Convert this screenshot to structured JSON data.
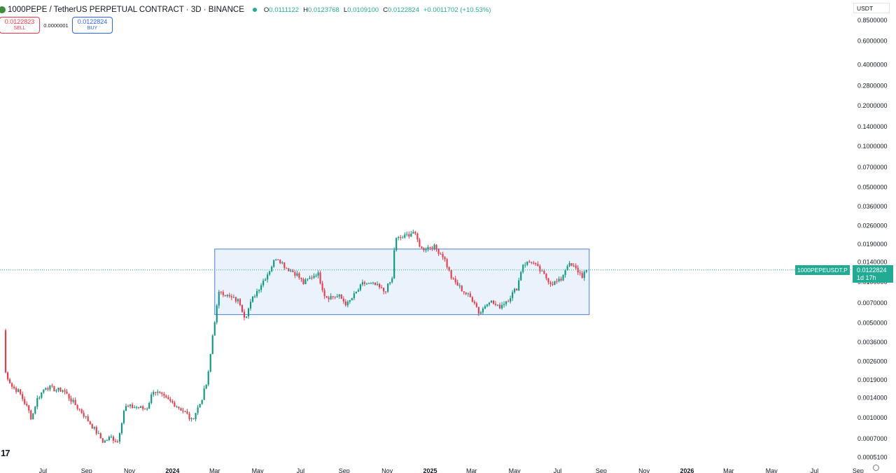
{
  "header": {
    "title": "1000PEPE / TetherUS PERPETUAL CONTRACT · 3D · BINANCE",
    "ohlc": [
      {
        "label": "O",
        "value": "0.0111122"
      },
      {
        "label": "H",
        "value": "0.0123768"
      },
      {
        "label": "L",
        "value": "0.0109100"
      },
      {
        "label": "C",
        "value": "0.0122824"
      }
    ],
    "change": "+0.0011702 (+10.53%)"
  },
  "trade": {
    "sell_price": "0.0122823",
    "sell_label": "SELL",
    "spread": "0.0000001",
    "buy_price": "0.0122824",
    "buy_label": "BUY"
  },
  "currency": "USDT",
  "last_price": {
    "symbol": "1000PEPEUSDT.P",
    "price": "0.0122824",
    "countdown": "1d 17h"
  },
  "colors": {
    "up": "#089981",
    "down": "#f23645",
    "accent": "#22ab94",
    "box_fill": "#e3eefb",
    "box_border": "#4a7fcf"
  },
  "chart_data": {
    "type": "candlestick",
    "y_scale": "log",
    "ylim": [
      0.00049,
      0.0085
    ],
    "y_ticks": [
      "0.8500000",
      "0.6000000",
      "0.4000000",
      "0.2800000",
      "0.2000000",
      "0.1400000",
      "0.1000000",
      "0.0700000",
      "0.0500000",
      "0.0360000",
      "0.0260000",
      "0.0190000",
      "0.0140000",
      "0.0100000",
      "0.0070000",
      "0.0050000",
      "0.0036000",
      "0.0026000",
      "0.0019000",
      "0.0014000",
      "0.0010000",
      "0.0007000",
      "0.0005100"
    ],
    "y_tick_values": [
      0.85,
      0.6,
      0.4,
      0.28,
      0.2,
      0.14,
      0.1,
      0.07,
      0.05,
      0.036,
      0.026,
      0.019,
      0.014,
      0.01,
      0.007,
      0.005,
      0.0036,
      0.0026,
      0.0019,
      0.0014,
      0.001,
      0.0007,
      0.00051
    ],
    "x_ticks": [
      {
        "label": "Jul",
        "date": "2023-07-01",
        "bold": false
      },
      {
        "label": "Sep",
        "date": "2023-09-01",
        "bold": false
      },
      {
        "label": "Nov",
        "date": "2023-11-01",
        "bold": false
      },
      {
        "label": "2024",
        "date": "2024-01-01",
        "bold": true
      },
      {
        "label": "Mar",
        "date": "2024-03-01",
        "bold": false
      },
      {
        "label": "May",
        "date": "2024-05-01",
        "bold": false
      },
      {
        "label": "Jul",
        "date": "2024-07-01",
        "bold": false
      },
      {
        "label": "Sep",
        "date": "2024-09-01",
        "bold": false
      },
      {
        "label": "Nov",
        "date": "2024-11-01",
        "bold": false
      },
      {
        "label": "2025",
        "date": "2025-01-01",
        "bold": true
      },
      {
        "label": "Mar",
        "date": "2025-03-01",
        "bold": false
      },
      {
        "label": "May",
        "date": "2025-05-01",
        "bold": false
      },
      {
        "label": "Jul",
        "date": "2025-07-01",
        "bold": false
      },
      {
        "label": "Sep",
        "date": "2025-09-01",
        "bold": false
      },
      {
        "label": "Nov",
        "date": "2025-11-01",
        "bold": false
      },
      {
        "label": "2026",
        "date": "2026-01-01",
        "bold": true
      },
      {
        "label": "Mar",
        "date": "2026-03-01",
        "bold": false
      },
      {
        "label": "May",
        "date": "2026-05-01",
        "bold": false
      },
      {
        "label": "Jul",
        "date": "2026-07-01",
        "bold": false
      },
      {
        "label": "Sep",
        "date": "2026-09-01",
        "bold": false
      }
    ],
    "x_range": [
      "2023-05-01",
      "2026-09-15"
    ],
    "series_anchors": [
      {
        "date": "2023-05-06",
        "close": 0.0044
      },
      {
        "date": "2023-05-08",
        "close": 0.0022
      },
      {
        "date": "2023-05-18",
        "close": 0.0017
      },
      {
        "date": "2023-05-28",
        "close": 0.00155
      },
      {
        "date": "2023-06-10",
        "close": 0.00115
      },
      {
        "date": "2023-06-15",
        "close": 0.00098
      },
      {
        "date": "2023-06-22",
        "close": 0.00135
      },
      {
        "date": "2023-07-05",
        "close": 0.0017
      },
      {
        "date": "2023-07-20",
        "close": 0.0016
      },
      {
        "date": "2023-07-30",
        "close": 0.0016
      },
      {
        "date": "2023-08-10",
        "close": 0.00135
      },
      {
        "date": "2023-08-25",
        "close": 0.0011
      },
      {
        "date": "2023-09-10",
        "close": 0.00085
      },
      {
        "date": "2023-09-25",
        "close": 0.00066
      },
      {
        "date": "2023-10-05",
        "close": 0.00072
      },
      {
        "date": "2023-10-15",
        "close": 0.00067
      },
      {
        "date": "2023-10-25",
        "close": 0.0012
      },
      {
        "date": "2023-11-10",
        "close": 0.0012
      },
      {
        "date": "2023-11-25",
        "close": 0.00115
      },
      {
        "date": "2023-12-05",
        "close": 0.0016
      },
      {
        "date": "2023-12-20",
        "close": 0.0014
      },
      {
        "date": "2024-01-05",
        "close": 0.00125
      },
      {
        "date": "2024-01-20",
        "close": 0.00108
      },
      {
        "date": "2024-01-28",
        "close": 0.00095
      },
      {
        "date": "2024-02-10",
        "close": 0.0013
      },
      {
        "date": "2024-02-20",
        "close": 0.0019
      },
      {
        "date": "2024-02-28",
        "close": 0.0045
      },
      {
        "date": "2024-03-08",
        "close": 0.0088
      },
      {
        "date": "2024-03-20",
        "close": 0.0078
      },
      {
        "date": "2024-04-05",
        "close": 0.0072
      },
      {
        "date": "2024-04-13",
        "close": 0.0055
      },
      {
        "date": "2024-04-25",
        "close": 0.0078
      },
      {
        "date": "2024-05-15",
        "close": 0.0115
      },
      {
        "date": "2024-05-28",
        "close": 0.0155
      },
      {
        "date": "2024-06-10",
        "close": 0.0128
      },
      {
        "date": "2024-06-25",
        "close": 0.0115
      },
      {
        "date": "2024-07-05",
        "close": 0.0098
      },
      {
        "date": "2024-07-25",
        "close": 0.0118
      },
      {
        "date": "2024-08-05",
        "close": 0.0078
      },
      {
        "date": "2024-08-25",
        "close": 0.0078
      },
      {
        "date": "2024-09-05",
        "close": 0.0068
      },
      {
        "date": "2024-09-28",
        "close": 0.0098
      },
      {
        "date": "2024-10-15",
        "close": 0.0095
      },
      {
        "date": "2024-10-28",
        "close": 0.0085
      },
      {
        "date": "2024-11-08",
        "close": 0.0105
      },
      {
        "date": "2024-11-12",
        "close": 0.0205
      },
      {
        "date": "2024-11-25",
        "close": 0.0215
      },
      {
        "date": "2024-12-08",
        "close": 0.0235
      },
      {
        "date": "2024-12-20",
        "close": 0.0175
      },
      {
        "date": "2025-01-05",
        "close": 0.0185
      },
      {
        "date": "2025-01-20",
        "close": 0.0155
      },
      {
        "date": "2025-02-01",
        "close": 0.0105
      },
      {
        "date": "2025-02-15",
        "close": 0.0088
      },
      {
        "date": "2025-03-05",
        "close": 0.0072
      },
      {
        "date": "2025-03-12",
        "close": 0.0058
      },
      {
        "date": "2025-03-25",
        "close": 0.0074
      },
      {
        "date": "2025-04-08",
        "close": 0.0065
      },
      {
        "date": "2025-04-22",
        "close": 0.0075
      },
      {
        "date": "2025-05-05",
        "close": 0.0092
      },
      {
        "date": "2025-05-12",
        "close": 0.0135
      },
      {
        "date": "2025-05-25",
        "close": 0.0142
      },
      {
        "date": "2025-06-08",
        "close": 0.0118
      },
      {
        "date": "2025-06-22",
        "close": 0.0098
      },
      {
        "date": "2025-07-05",
        "close": 0.0102
      },
      {
        "date": "2025-07-15",
        "close": 0.0135
      },
      {
        "date": "2025-07-25",
        "close": 0.0128
      },
      {
        "date": "2025-08-05",
        "close": 0.0111
      },
      {
        "date": "2025-08-11",
        "close": 0.0122824
      }
    ],
    "range_box": {
      "start": "2024-03-01",
      "end": "2025-08-15",
      "top": 0.0175,
      "bottom": 0.00575
    }
  }
}
